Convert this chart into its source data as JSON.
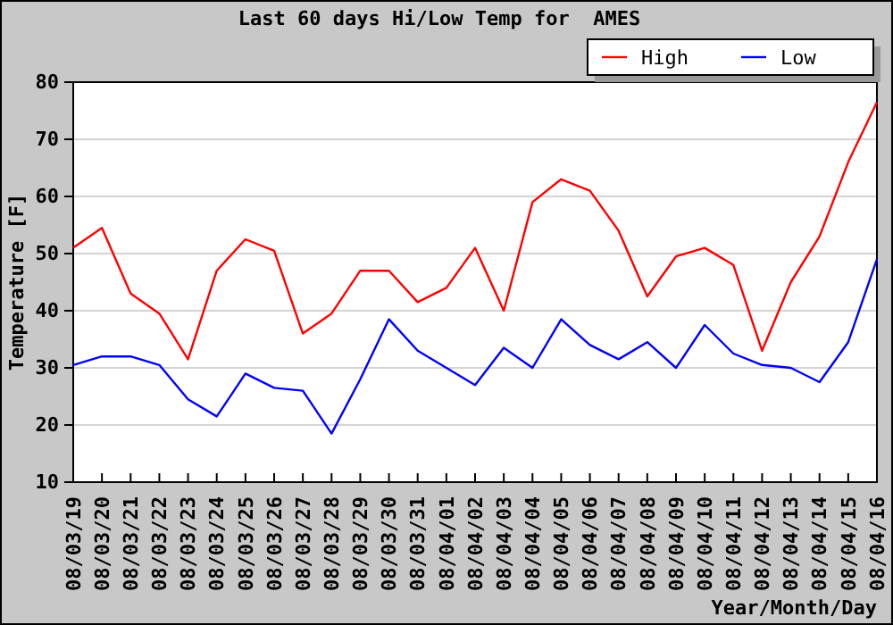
{
  "chart_data": {
    "type": "line",
    "title": "Last 60 days Hi/Low Temp for  AMES",
    "xlabel": "Year/Month/Day",
    "ylabel": "Temperature [F]",
    "categories": [
      "08/03/19",
      "08/03/20",
      "08/03/21",
      "08/03/22",
      "08/03/23",
      "08/03/24",
      "08/03/25",
      "08/03/26",
      "08/03/27",
      "08/03/28",
      "08/03/29",
      "08/03/30",
      "08/03/31",
      "08/04/01",
      "08/04/02",
      "08/04/03",
      "08/04/04",
      "08/04/05",
      "08/04/06",
      "08/04/07",
      "08/04/08",
      "08/04/09",
      "08/04/10",
      "08/04/11",
      "08/04/12",
      "08/04/13",
      "08/04/14",
      "08/04/15",
      "08/04/16"
    ],
    "series": [
      {
        "name": "High",
        "color": "#ff0000",
        "values": [
          51,
          54.5,
          43,
          39.5,
          31.5,
          47,
          52.5,
          50.5,
          36,
          39.5,
          47,
          47,
          41.5,
          44,
          51,
          40,
          59,
          63,
          61,
          54,
          42.5,
          49.5,
          51,
          48,
          33,
          45,
          53,
          66,
          76.5
        ]
      },
      {
        "name": "Low",
        "color": "#0000ff",
        "values": [
          30.5,
          32,
          32,
          30.5,
          24.5,
          21.5,
          29,
          26.5,
          26,
          18.5,
          28,
          38.5,
          33,
          30,
          27,
          33.5,
          30,
          38.5,
          34,
          31.5,
          34.5,
          30,
          37.5,
          32.5,
          30.5,
          30,
          27.5,
          34.5,
          49
        ]
      }
    ],
    "ylim": [
      10,
      80
    ],
    "yticks": [
      10,
      20,
      30,
      40,
      50,
      60,
      70,
      80
    ],
    "grid": "y",
    "legend": "top right"
  }
}
